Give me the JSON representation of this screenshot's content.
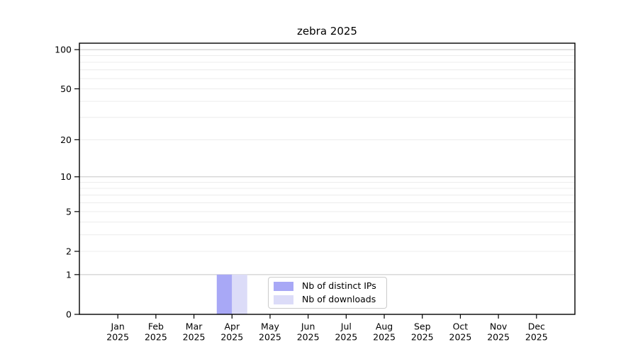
{
  "figure": {
    "title": "zebra 2025",
    "background": "#ffffff"
  },
  "chart_data": {
    "type": "bar",
    "title": "zebra 2025",
    "categories": [
      "Jan",
      "Feb",
      "Mar",
      "Apr",
      "May",
      "Jun",
      "Jul",
      "Aug",
      "Sep",
      "Oct",
      "Nov",
      "Dec"
    ],
    "year_label": "2025",
    "series": [
      {
        "name": "Nb of distinct IPs",
        "color": "#a8a8f6",
        "values": [
          0,
          0,
          0,
          1,
          0,
          0,
          0,
          0,
          0,
          0,
          0,
          0
        ]
      },
      {
        "name": "Nb of downloads",
        "color": "#dcdcf8",
        "values": [
          0,
          0,
          0,
          1,
          0,
          0,
          0,
          0,
          0,
          0,
          0,
          0
        ]
      }
    ],
    "xlabel": "",
    "ylabel": "",
    "y_scale": "log1p",
    "ylim": [
      0,
      112
    ],
    "y_ticks": [
      0,
      1,
      2,
      5,
      10,
      20,
      50,
      100
    ],
    "y_major_gridlines": [
      1,
      10,
      100
    ],
    "y_minor_gridlines": [
      2,
      3,
      4,
      5,
      6,
      7,
      8,
      9,
      20,
      30,
      40,
      50,
      60,
      70,
      80,
      90
    ],
    "grid": true,
    "legend_position": "lower center"
  },
  "colors": {
    "axis": "#000000",
    "major_grid": "#c5c5c5",
    "minor_grid": "#ececec",
    "legend_border": "#cbcbcb",
    "text": "#000000"
  }
}
